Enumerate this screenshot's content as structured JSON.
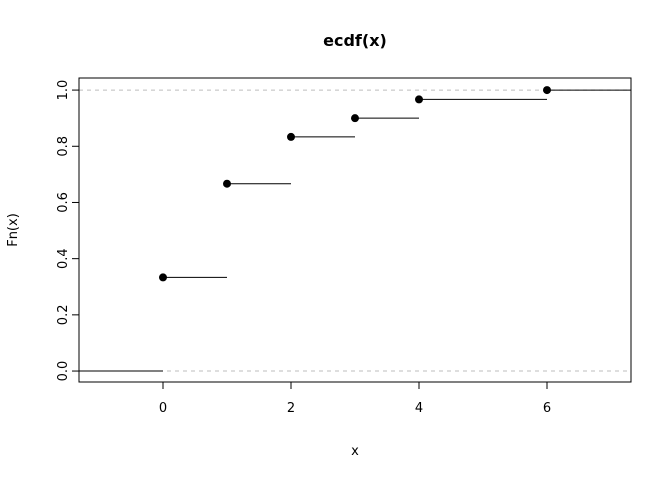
{
  "chart_data": {
    "type": "step",
    "title": "ecdf(x)",
    "xlabel": "x",
    "ylabel": "Fn(x)",
    "xlim": [
      -1.3125,
      7.3125
    ],
    "ylim": [
      -0.039,
      1.043
    ],
    "x_ticks": [
      0,
      2,
      4,
      6
    ],
    "x_tick_labels": [
      "0",
      "2",
      "4",
      "6"
    ],
    "y_ticks": [
      0,
      0.2,
      0.4,
      0.6,
      0.8,
      1.0
    ],
    "y_tick_labels": [
      "0.0",
      "0.2",
      "0.4",
      "0.6",
      "0.8",
      "1.0"
    ],
    "points": [
      {
        "x": 0,
        "y": 0.3333
      },
      {
        "x": 1,
        "y": 0.6667
      },
      {
        "x": 2,
        "y": 0.8333
      },
      {
        "x": 3,
        "y": 0.9
      },
      {
        "x": 4,
        "y": 0.9667
      },
      {
        "x": 6,
        "y": 1.0
      }
    ],
    "reference_lines": [
      0,
      1
    ],
    "grid": false,
    "colors": {
      "points": "#000000",
      "reference": "#bebebe"
    }
  }
}
